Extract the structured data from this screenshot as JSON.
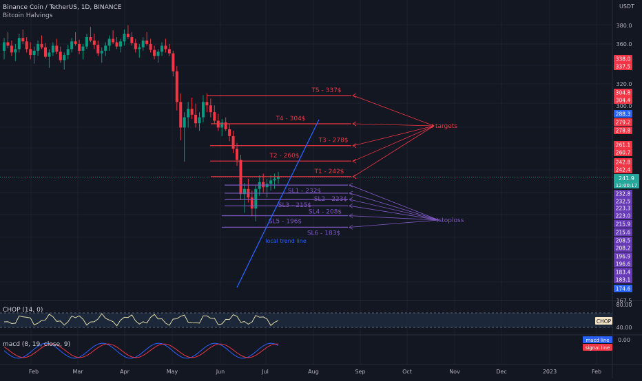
{
  "header": {
    "symbol_title": "Binance Coin / TetherUS, 1D, BINANCE",
    "indicator": "Bitcoin Halvings"
  },
  "price_axis": {
    "unit": "USDT",
    "ticks": [
      "380.0",
      "360.0",
      "320.0",
      "300.0",
      "167.5"
    ],
    "current_price": "241.9",
    "countdown": "12:00:17"
  },
  "price_labels": [
    {
      "value": "338.0",
      "color": "#f23645"
    },
    {
      "value": "337.5",
      "color": "#f23645"
    },
    {
      "value": "304.8",
      "color": "#f23645"
    },
    {
      "value": "304.4",
      "color": "#f23645"
    },
    {
      "value": "288.3",
      "color": "#2962ff"
    },
    {
      "value": "279.2",
      "color": "#f23645"
    },
    {
      "value": "278.8",
      "color": "#f23645"
    },
    {
      "value": "261.1",
      "color": "#f23645"
    },
    {
      "value": "260.7",
      "color": "#f23645"
    },
    {
      "value": "242.8",
      "color": "#f23645"
    },
    {
      "value": "242.4",
      "color": "#f23645"
    },
    {
      "value": "232.8",
      "color": "#673ab7"
    },
    {
      "value": "232.5",
      "color": "#673ab7"
    },
    {
      "value": "223.3",
      "color": "#673ab7"
    },
    {
      "value": "223.0",
      "color": "#673ab7"
    },
    {
      "value": "215.9",
      "color": "#673ab7"
    },
    {
      "value": "215.6",
      "color": "#673ab7"
    },
    {
      "value": "208.5",
      "color": "#673ab7"
    },
    {
      "value": "208.2",
      "color": "#673ab7"
    },
    {
      "value": "196.9",
      "color": "#673ab7"
    },
    {
      "value": "196.6",
      "color": "#673ab7"
    },
    {
      "value": "183.4",
      "color": "#673ab7"
    },
    {
      "value": "183.1",
      "color": "#673ab7"
    },
    {
      "value": "174.6",
      "color": "#2962ff"
    }
  ],
  "chart_data": {
    "type": "candlestick",
    "x_tick_labels": [
      "Feb",
      "Mar",
      "Apr",
      "May",
      "Jun",
      "Jul",
      "Aug",
      "Sep",
      "Oct",
      "Nov",
      "Dec",
      "2023",
      "Feb"
    ],
    "targets_label": "targets",
    "stoploss_label": "stoploss",
    "trend_label": "local trend line",
    "targets": [
      {
        "label": "T5 - 337$",
        "price": 337.5
      },
      {
        "label": "T4 - 304$",
        "price": 304.4
      },
      {
        "label": "T3 - 278$",
        "price": 278.8
      },
      {
        "label": "T2 - 260$",
        "price": 260.7
      },
      {
        "label": "T1 - 242$",
        "price": 242.4
      }
    ],
    "stoplosses": [
      {
        "label": "SL1 - 232$",
        "price": 232.5
      },
      {
        "label": "SL2 - 223$",
        "price": 223.0
      },
      {
        "label": "SL3 - 215$",
        "price": 215.6
      },
      {
        "label": "SL4 - 208$",
        "price": 208.2
      },
      {
        "label": "SL5 - 196$",
        "price": 196.6
      },
      {
        "label": "SL6 - 183$",
        "price": 183.1
      }
    ],
    "candles": [
      [
        390,
        405,
        380,
        400
      ],
      [
        400,
        412,
        393,
        396
      ],
      [
        396,
        402,
        384,
        388
      ],
      [
        388,
        398,
        378,
        392
      ],
      [
        392,
        410,
        388,
        405
      ],
      [
        405,
        415,
        398,
        401
      ],
      [
        401,
        406,
        388,
        392
      ],
      [
        392,
        400,
        380,
        385
      ],
      [
        385,
        395,
        375,
        390
      ],
      [
        390,
        402,
        384,
        398
      ],
      [
        398,
        408,
        392,
        394
      ],
      [
        394,
        399,
        381,
        383
      ],
      [
        383,
        392,
        370,
        388
      ],
      [
        388,
        400,
        384,
        396
      ],
      [
        396,
        404,
        386,
        389
      ],
      [
        389,
        395,
        376,
        379
      ],
      [
        379,
        388,
        368,
        385
      ],
      [
        385,
        397,
        380,
        392
      ],
      [
        392,
        405,
        388,
        401
      ],
      [
        401,
        412,
        396,
        398
      ],
      [
        398,
        403,
        386,
        390
      ],
      [
        390,
        398,
        380,
        395
      ],
      [
        395,
        410,
        392,
        406
      ],
      [
        406,
        418,
        400,
        402
      ],
      [
        402,
        410,
        392,
        397
      ],
      [
        397,
        402,
        384,
        387
      ],
      [
        387,
        394,
        376,
        390
      ],
      [
        390,
        400,
        384,
        396
      ],
      [
        396,
        408,
        390,
        404
      ],
      [
        404,
        414,
        398,
        400
      ],
      [
        400,
        406,
        392,
        395
      ],
      [
        395,
        404,
        388,
        401
      ],
      [
        401,
        415,
        396,
        410
      ],
      [
        410,
        420,
        404,
        406
      ],
      [
        406,
        412,
        396,
        399
      ],
      [
        399,
        404,
        388,
        392
      ],
      [
        392,
        398,
        382,
        394
      ],
      [
        394,
        406,
        390,
        402
      ],
      [
        402,
        412,
        396,
        398
      ],
      [
        398,
        404,
        388,
        391
      ],
      [
        391,
        396,
        380,
        384
      ],
      [
        384,
        392,
        376,
        389
      ],
      [
        389,
        400,
        384,
        396
      ],
      [
        396,
        404,
        388,
        392
      ],
      [
        392,
        398,
        384,
        387
      ],
      [
        387,
        390,
        360,
        366
      ],
      [
        366,
        372,
        320,
        330
      ],
      [
        330,
        340,
        285,
        300
      ],
      [
        300,
        318,
        260,
        312
      ],
      [
        312,
        330,
        300,
        322
      ],
      [
        322,
        335,
        310,
        315
      ],
      [
        315,
        328,
        300,
        305
      ],
      [
        305,
        318,
        296,
        312
      ],
      [
        312,
        338,
        306,
        330
      ],
      [
        330,
        340,
        318,
        326
      ],
      [
        326,
        334,
        312,
        318
      ],
      [
        318,
        326,
        304,
        308
      ],
      [
        308,
        316,
        296,
        300
      ],
      [
        300,
        310,
        290,
        306
      ],
      [
        306,
        312,
        296,
        298
      ],
      [
        298,
        304,
        284,
        290
      ],
      [
        290,
        296,
        270,
        275
      ],
      [
        275,
        282,
        255,
        262
      ],
      [
        262,
        268,
        215,
        222
      ],
      [
        222,
        235,
        200,
        228
      ],
      [
        228,
        240,
        212,
        218
      ],
      [
        218,
        226,
        196,
        205
      ],
      [
        205,
        232,
        190,
        228
      ],
      [
        228,
        244,
        220,
        236
      ],
      [
        236,
        246,
        224,
        230
      ],
      [
        230,
        240,
        218,
        234
      ],
      [
        234,
        244,
        226,
        238
      ],
      [
        238,
        246,
        228,
        240
      ],
      [
        240,
        248,
        234,
        242
      ]
    ],
    "chop_label": "CHOP (14, 0)",
    "chop_levels": [
      "80.00",
      "40.00"
    ],
    "chop_tag": "CHOP",
    "macd_label": "macd (8, 19, close, 9)",
    "macd_levels": [
      "0.00"
    ],
    "macd_legend": [
      "macd line",
      "signal line"
    ]
  }
}
